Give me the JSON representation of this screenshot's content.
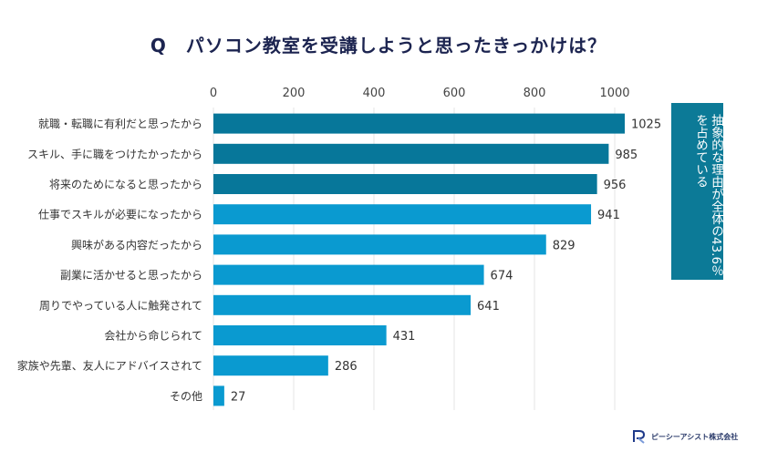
{
  "title": "Q　パソコン教室を受講しようと思ったきっかけは？",
  "callout": "抽象的な理由が全体の43.6％を占めている",
  "logo": {
    "name": "ピーシーアシスト株式会社",
    "icon": "company-logo-icon"
  },
  "colors": {
    "dark_bar": "#07779a",
    "light_bar": "#0a9ad0",
    "callout_bg": "#0c7a97",
    "grid": "#e4e4e4",
    "title": "#1c2450"
  },
  "chart_data": {
    "type": "bar",
    "orientation": "horizontal",
    "categories": [
      "就職・転職に有利だと思ったから",
      "スキル、手に職をつけたかったから",
      "将来のためになると思ったから",
      "仕事でスキルが必要になったから",
      "興味がある内容だったから",
      "副業に活かせると思ったから",
      "周りでやっている人に触発されて",
      "会社から命じられて",
      "家族や先輩、友人にアドバイスされて",
      "その他"
    ],
    "values": [
      1025,
      985,
      956,
      941,
      829,
      674,
      641,
      431,
      286,
      27
    ],
    "highlighted_first_n": 3,
    "xlim": [
      0,
      1000
    ],
    "xticks": [
      0,
      200,
      400,
      600,
      800,
      1000
    ],
    "x_axis_position": "top",
    "grid": true
  }
}
